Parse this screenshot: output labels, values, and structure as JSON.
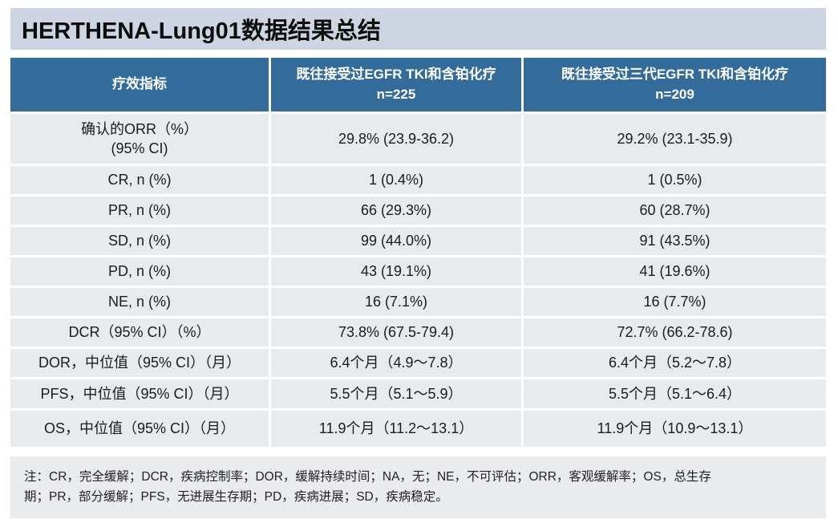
{
  "slide": {
    "title": "HERTHENA-Lung01数据结果总结",
    "footnote_line1": "注：CR，完全缓解；DCR，疾病控制率；DOR，缓解持续时间；NA，无；NE，不可评估；ORR，客观缓解率；OS，总生存",
    "footnote_line2": "期；PR，部分缓解；PFS，无进展生存期；PD，疾病进展；SD，疾病稳定。"
  },
  "colors": {
    "header_blue": "#336b9b",
    "title_band": "#ccd5e1",
    "row_bg": "#e8ebee",
    "header_text": "#ffffff",
    "body_text": "#1b1b1b"
  },
  "table": {
    "header": {
      "col1": "疗效指标",
      "col2_line1": "既往接受过EGFR TKI和含铂化疗",
      "col2_line2": "n=225",
      "col3_line1": "既往接受过三代EGFR TKI和含铂化疗",
      "col3_line2": "n=209"
    },
    "rows": [
      {
        "label": "确认的ORR（%）",
        "label2": "(95% CI)",
        "v1": "29.8% (23.9-36.2)",
        "v2": "29.2% (23.1-35.9)"
      },
      {
        "label": "CR, n (%)",
        "v1": "1 (0.4%)",
        "v2": "1 (0.5%)"
      },
      {
        "label": "PR, n (%)",
        "v1": "66 (29.3%)",
        "v2": "60 (28.7%)"
      },
      {
        "label": "SD, n (%)",
        "v1": "99 (44.0%)",
        "v2": "91 (43.5%)"
      },
      {
        "label": "PD, n (%)",
        "v1": "43 (19.1%)",
        "v2": "41 (19.6%)"
      },
      {
        "label": "NE, n (%)",
        "v1": "16 (7.1%)",
        "v2": "16 (7.7%)"
      },
      {
        "label": "DCR（95% CI）（%）",
        "v1": "73.8% (67.5-79.4)",
        "v2": "72.7% (66.2-78.6)"
      },
      {
        "label": "DOR，中位值（95% CI）（月）",
        "v1": "6.4个月（4.9～7.8）",
        "v2": "6.4个月（5.2～7.8）"
      },
      {
        "label": "PFS，中位值（95% CI）（月）",
        "v1": "5.5个月（5.1～5.9）",
        "v2": "5.5个月（5.1～6.4）"
      },
      {
        "label": "OS，中位值（95% CI）（月）",
        "v1": "11.9个月（11.2～13.1）",
        "v2": "11.9个月（10.9～13.1）"
      }
    ]
  },
  "chart_data": {
    "type": "table",
    "title": "HERTHENA-Lung01数据结果总结",
    "columns": [
      "疗效指标",
      "既往接受过EGFR TKI和含铂化疗 n=225",
      "既往接受过三代EGFR TKI和含铂化疗 n=209"
    ],
    "rows": [
      [
        "确认的ORR（%）(95% CI)",
        "29.8% (23.9-36.2)",
        "29.2% (23.1-35.9)"
      ],
      [
        "CR, n (%)",
        "1 (0.4%)",
        "1 (0.5%)"
      ],
      [
        "PR, n (%)",
        "66 (29.3%)",
        "60 (28.7%)"
      ],
      [
        "SD, n (%)",
        "99 (44.0%)",
        "91 (43.5%)"
      ],
      [
        "PD, n (%)",
        "43 (19.1%)",
        "41 (19.6%)"
      ],
      [
        "NE, n (%)",
        "16 (7.1%)",
        "16 (7.7%)"
      ],
      [
        "DCR（95% CI）（%）",
        "73.8% (67.5-79.4)",
        "72.7% (66.2-78.6)"
      ],
      [
        "DOR，中位值（95% CI）（月）",
        "6.4个月（4.9～7.8）",
        "6.4个月（5.2～7.8）"
      ],
      [
        "PFS，中位值（95% CI）（月）",
        "5.5个月（5.1～5.9）",
        "5.5个月（5.1～6.4）"
      ],
      [
        "OS，中位值（95% CI）（月）",
        "11.9个月（11.2～13.1）",
        "11.9个月（10.9～13.1）"
      ]
    ],
    "footnote": "注：CR，完全缓解；DCR，疾病控制率；DOR，缓解持续时间；NA，无；NE，不可评估；ORR，客观缓解率；OS，总生存期；PR，部分缓解；PFS，无进展生存期；PD，疾病进展；SD，疾病稳定。"
  }
}
